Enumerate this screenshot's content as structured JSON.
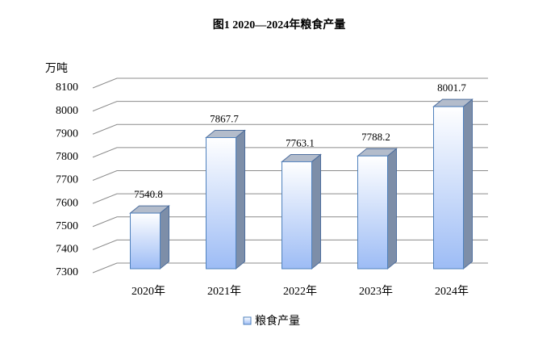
{
  "chart_data": {
    "type": "bar3d",
    "title": "图1 2020—2024年粮食产量",
    "y_unit": "万吨",
    "categories": [
      "2020年",
      "2021年",
      "2022年",
      "2023年",
      "2024年"
    ],
    "series": [
      {
        "name": "粮食产量",
        "color": "#9dbcf5",
        "values": [
          7540.8,
          7867.7,
          7763.1,
          7788.2,
          8001.7
        ]
      }
    ],
    "ylim": [
      7300,
      8100
    ],
    "yticks": [
      7300,
      7400,
      7500,
      7600,
      7700,
      7800,
      7900,
      8000,
      8100
    ],
    "grid": true
  }
}
